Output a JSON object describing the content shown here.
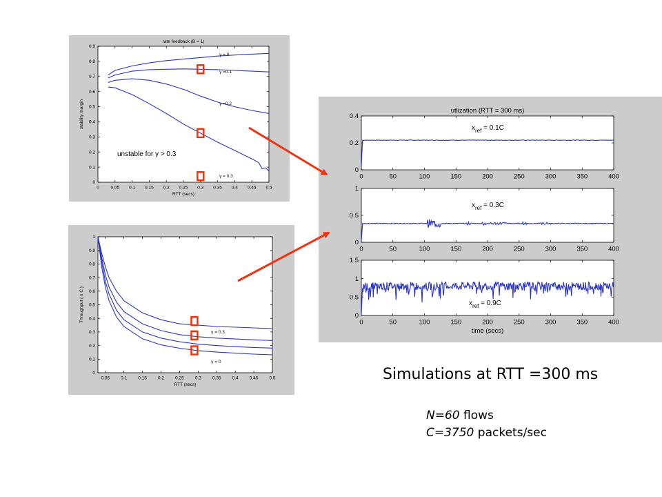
{
  "caption": "Simulations at RTT =300 ms",
  "params": {
    "n_value": "N=60",
    "n_unit": " flows",
    "c_value": "C=3750",
    "c_unit": " packets/sec"
  },
  "colors": {
    "curve": "#2a34c8",
    "marker": "#ff2a00",
    "arrow": "#ee3311",
    "panel": "#cccccc"
  },
  "chart_data": [
    {
      "type": "line",
      "title": "rate feedback (B = 1)",
      "xlabel": "RTT (secs)",
      "ylabel": "stability margin",
      "xlim": [
        0,
        0.5
      ],
      "ylim": [
        0,
        0.9
      ],
      "x_ticks": [
        "0",
        "0.05",
        "0.1",
        "0.15",
        "0.2",
        "0.25",
        "0.3",
        "0.35",
        "0.4",
        "0.45",
        "0.5"
      ],
      "y_ticks": [
        "0",
        "0.1",
        "0.2",
        "0.3",
        "0.4",
        "0.5",
        "0.6",
        "0.7",
        "0.8",
        "0.9"
      ],
      "annotation": "unstable for γ > 0.3",
      "series": [
        {
          "name": "γ = 0",
          "x": [
            0.03,
            0.05,
            0.1,
            0.15,
            0.2,
            0.25,
            0.3,
            0.35,
            0.4,
            0.45,
            0.5
          ],
          "y": [
            0.71,
            0.74,
            0.77,
            0.79,
            0.805,
            0.815,
            0.825,
            0.835,
            0.842,
            0.848,
            0.853
          ]
        },
        {
          "name": "γ =0.1",
          "x": [
            0.03,
            0.05,
            0.1,
            0.15,
            0.2,
            0.25,
            0.3,
            0.35,
            0.4,
            0.45,
            0.5
          ],
          "y": [
            0.69,
            0.71,
            0.735,
            0.745,
            0.748,
            0.75,
            0.748,
            0.745,
            0.74,
            0.735,
            0.73
          ]
        },
        {
          "name": "γ =0.2",
          "x": [
            0.03,
            0.05,
            0.1,
            0.15,
            0.2,
            0.25,
            0.3,
            0.35,
            0.4,
            0.45,
            0.5
          ],
          "y": [
            0.66,
            0.675,
            0.685,
            0.675,
            0.65,
            0.615,
            0.57,
            0.53,
            0.5,
            0.475,
            0.455
          ]
        },
        {
          "name": "γ = 0.3",
          "x": [
            0.03,
            0.05,
            0.1,
            0.15,
            0.2,
            0.25,
            0.3,
            0.35,
            0.4,
            0.45,
            0.47,
            0.48,
            0.49,
            0.5
          ],
          "y": [
            0.63,
            0.625,
            0.58,
            0.52,
            0.455,
            0.385,
            0.325,
            0.265,
            0.21,
            0.155,
            0.13,
            0.09,
            0.095,
            0.075
          ]
        }
      ],
      "series_label_y": [
        0.845,
        0.73,
        0.52,
        0.04
      ],
      "markers": [
        [
          0.3,
          0.748
        ],
        [
          0.3,
          0.325
        ],
        [
          0.3,
          0.04
        ]
      ]
    },
    {
      "type": "line",
      "title": "",
      "xlabel": "RTT (secs)",
      "ylabel": "Throughput ( x C )",
      "xlim": [
        0.03,
        0.5
      ],
      "ylim": [
        0,
        1
      ],
      "x_ticks": [
        "0.05",
        "0.1",
        "0.15",
        "0.2",
        "0.25",
        "0.3",
        "0.35",
        "0.4",
        "0.45",
        "0.5"
      ],
      "y_ticks": [
        "0",
        "0.1",
        "0.2",
        "0.3",
        "0.4",
        "0.5",
        "0.6",
        "0.7",
        "0.8",
        "0.9",
        "1"
      ],
      "series": [
        {
          "name": "γ = 0.3",
          "x": [
            0.03,
            0.04,
            0.05,
            0.06,
            0.08,
            0.1,
            0.15,
            0.2,
            0.25,
            0.3,
            0.35,
            0.4,
            0.45,
            0.5
          ],
          "y": [
            1,
            0.88,
            0.78,
            0.7,
            0.6,
            0.53,
            0.44,
            0.39,
            0.36,
            0.35,
            0.34,
            0.335,
            0.33,
            0.325
          ]
        },
        {
          "name": "",
          "x": [
            0.03,
            0.04,
            0.05,
            0.06,
            0.08,
            0.1,
            0.15,
            0.2,
            0.25,
            0.3,
            0.35,
            0.4,
            0.45,
            0.5
          ],
          "y": [
            1,
            0.85,
            0.72,
            0.63,
            0.52,
            0.45,
            0.36,
            0.31,
            0.28,
            0.265,
            0.255,
            0.248,
            0.242,
            0.237
          ]
        },
        {
          "name": "",
          "x": [
            0.03,
            0.04,
            0.05,
            0.06,
            0.08,
            0.1,
            0.15,
            0.2,
            0.25,
            0.3,
            0.35,
            0.4,
            0.45,
            0.5
          ],
          "y": [
            1,
            0.82,
            0.67,
            0.58,
            0.46,
            0.39,
            0.3,
            0.255,
            0.228,
            0.21,
            0.2,
            0.192,
            0.186,
            0.181
          ]
        },
        {
          "name": "γ = 0",
          "x": [
            0.03,
            0.04,
            0.05,
            0.06,
            0.08,
            0.1,
            0.15,
            0.2,
            0.25,
            0.3,
            0.35,
            0.4,
            0.45,
            0.5
          ],
          "y": [
            1,
            0.78,
            0.63,
            0.53,
            0.41,
            0.34,
            0.25,
            0.205,
            0.18,
            0.163,
            0.152,
            0.144,
            0.137,
            0.132
          ]
        }
      ],
      "series_label_y": [
        0.3,
        null,
        null,
        0.08
      ],
      "markers": [
        [
          0.29,
          0.38
        ],
        [
          0.29,
          0.275
        ],
        [
          0.29,
          0.165
        ]
      ]
    },
    {
      "type": "line",
      "title": "utlization (RTT = 300 ms)",
      "xlabel": "",
      "ylabel": "",
      "xlim": [
        0,
        400
      ],
      "ylim": [
        0,
        0.4
      ],
      "x_ticks": [
        "0",
        "50",
        "100",
        "150",
        "200",
        "250",
        "300",
        "350",
        "400"
      ],
      "y_ticks": [
        "0",
        "0.2",
        "0.4"
      ],
      "annotation": "x_ref = 0.1C",
      "series": [
        {
          "name": "",
          "level": 0.22,
          "noise": "flat"
        }
      ]
    },
    {
      "type": "line",
      "title": "",
      "xlabel": "",
      "ylabel": "",
      "xlim": [
        0,
        400
      ],
      "ylim": [
        0,
        1
      ],
      "x_ticks": [
        "0",
        "50",
        "100",
        "150",
        "200",
        "250",
        "300",
        "350",
        "400"
      ],
      "y_ticks": [
        "0",
        "0.5",
        "1"
      ],
      "annotation": "x_ref = 0.3C",
      "series": [
        {
          "name": "",
          "level": 0.35,
          "noise": "bursts"
        }
      ]
    },
    {
      "type": "line",
      "title": "",
      "xlabel": "time (secs)",
      "ylabel": "",
      "xlim": [
        0,
        400
      ],
      "ylim": [
        0,
        1.5
      ],
      "x_ticks": [
        "0",
        "50",
        "100",
        "150",
        "200",
        "250",
        "300",
        "350",
        "400"
      ],
      "y_ticks": [
        "0",
        "0.5",
        "1",
        "1.5"
      ],
      "annotation": "x_ref = 0.9C",
      "series": [
        {
          "name": "",
          "level": 0.8,
          "noise": "heavy"
        }
      ]
    }
  ]
}
